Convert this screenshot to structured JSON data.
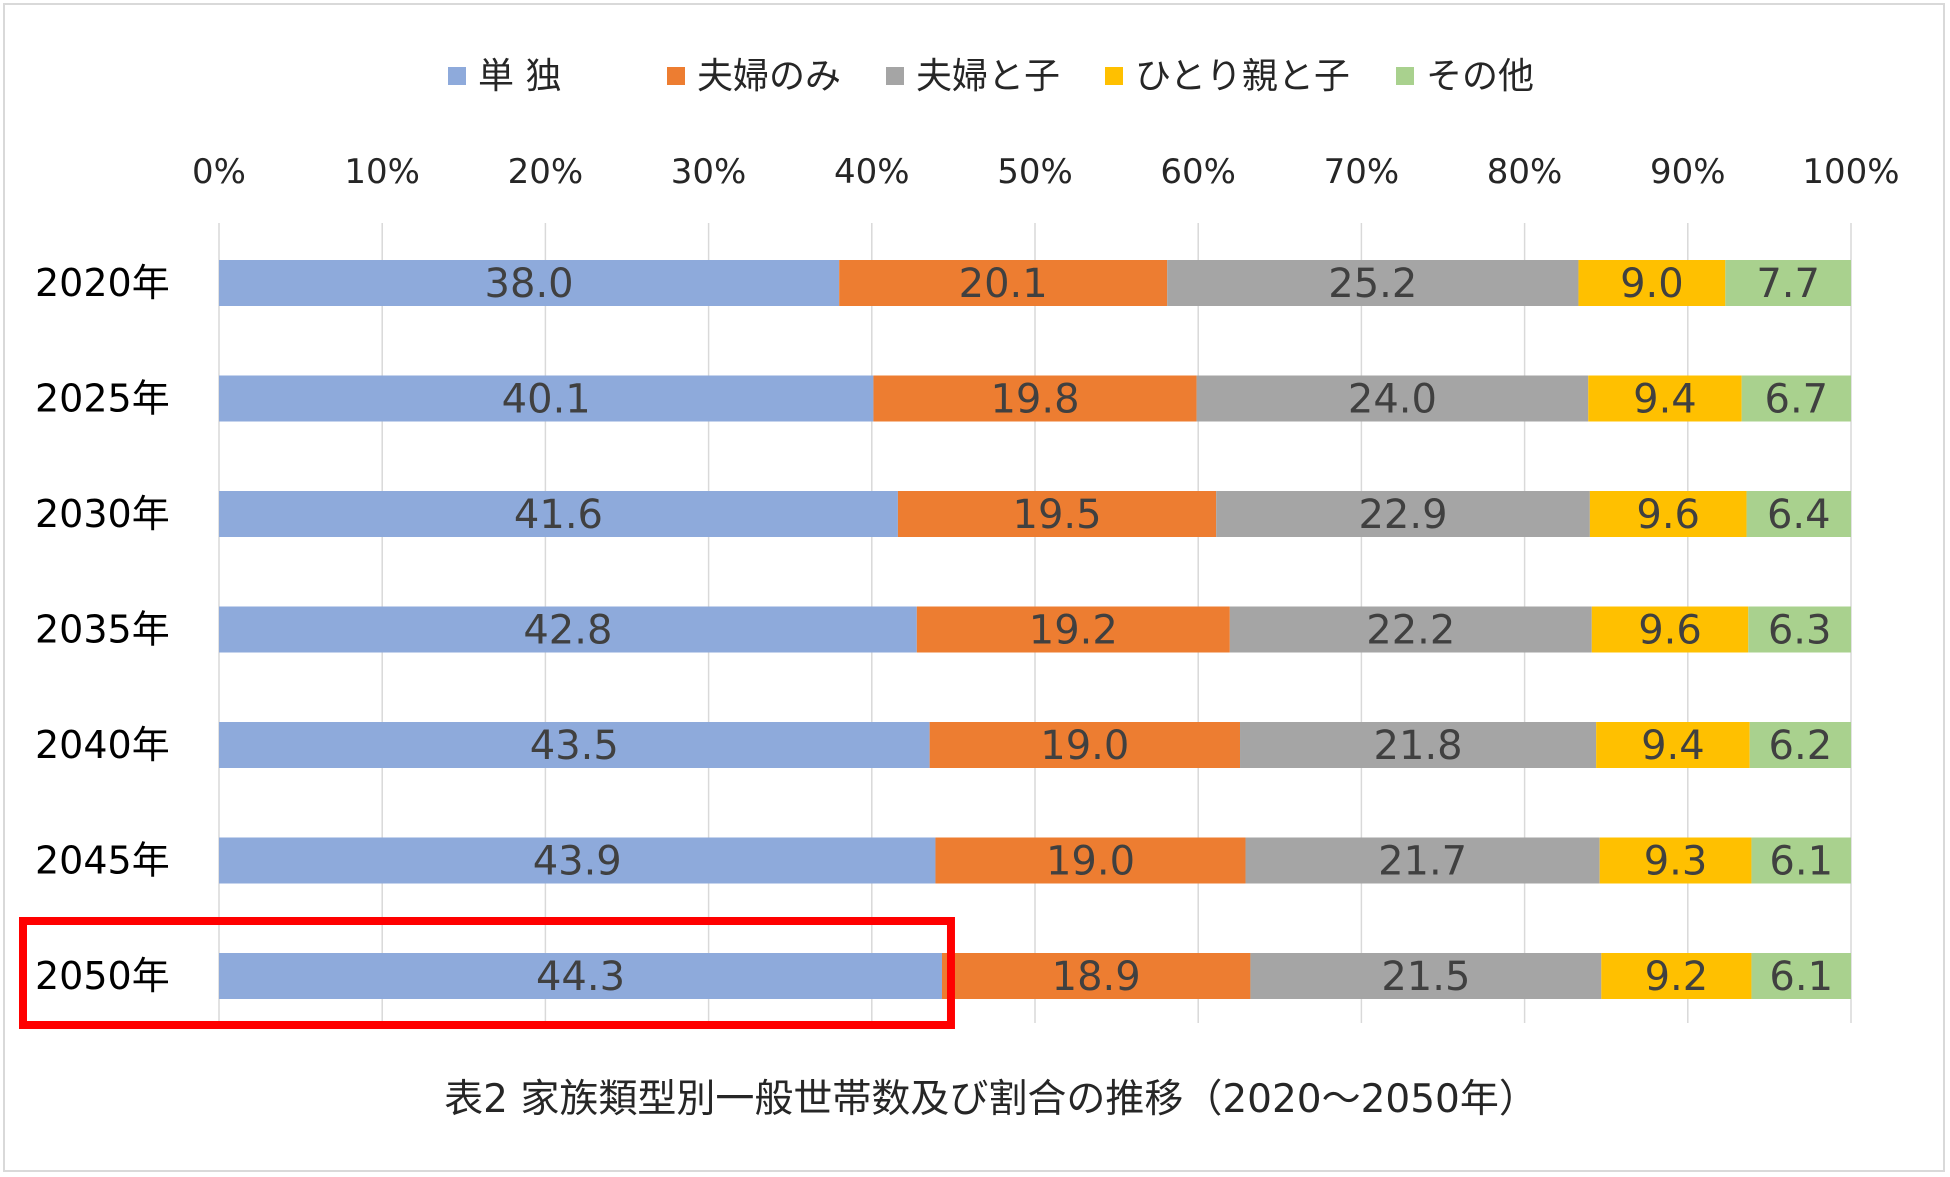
{
  "chart_data": {
    "type": "bar",
    "orientation": "horizontal-stacked-percent",
    "title": "表2  家族類型別一般世帯数及び割合の推移（2020～2050年）",
    "categories": [
      "2020年",
      "2025年",
      "2030年",
      "2035年",
      "2040年",
      "2045年",
      "2050年"
    ],
    "series": [
      {
        "name": "単  独",
        "color": "#8eaadb",
        "values": [
          38.0,
          40.1,
          41.6,
          42.8,
          43.5,
          43.9,
          44.3
        ]
      },
      {
        "name": "夫婦のみ",
        "color": "#ed7d31",
        "values": [
          20.1,
          19.8,
          19.5,
          19.2,
          19.0,
          19.0,
          18.9
        ]
      },
      {
        "name": "夫婦と子",
        "color": "#a5a5a5",
        "values": [
          25.2,
          24.0,
          22.9,
          22.2,
          21.8,
          21.7,
          21.5
        ]
      },
      {
        "name": "ひとり親と子",
        "color": "#ffc000",
        "values": [
          9.0,
          9.4,
          9.6,
          9.6,
          9.4,
          9.3,
          9.2
        ]
      },
      {
        "name": "その他",
        "color": "#a9d18e",
        "values": [
          7.7,
          6.7,
          6.4,
          6.3,
          6.2,
          6.1,
          6.1
        ]
      }
    ],
    "x_ticks": [
      "0%",
      "10%",
      "20%",
      "30%",
      "40%",
      "50%",
      "60%",
      "70%",
      "80%",
      "90%",
      "100%"
    ],
    "xlim": [
      0,
      100
    ],
    "axis_position": "top",
    "legend": "top-center",
    "grid": true,
    "highlight": {
      "category": "2050年",
      "series": "単  独",
      "color": "#ff0000"
    }
  }
}
